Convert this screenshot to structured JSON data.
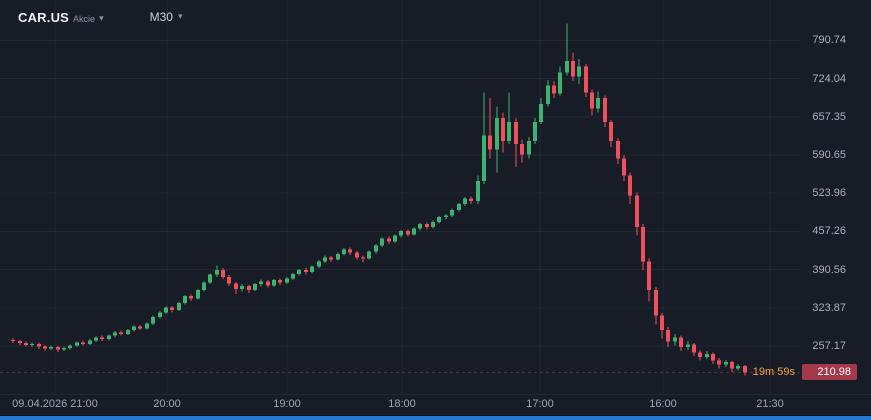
{
  "header": {
    "symbol": "CAR.US",
    "instrument_type": "Akcie",
    "timeframe": "M30"
  },
  "current_price_badge": "210.98",
  "candle_countdown": "19m 59s",
  "colors": {
    "background": "#171c27",
    "up": "#3fb26f",
    "down": "#f0505c",
    "grid": "rgba(255,255,255,0.05)",
    "axis_text": "#a9b0bb",
    "countdown_orange": "#f2a33c",
    "badge_red": "#a4394a",
    "scrollbar_blue": "#2579d2"
  },
  "chart_data": {
    "type": "candlestick",
    "title": "CAR.US M30 candlestick chart",
    "symbol": "CAR.US",
    "timeframe": "M30",
    "legend_position": "none",
    "grid": "faint",
    "price_axis_ticks": [
      790.74,
      724.04,
      657.35,
      590.65,
      523.96,
      457.26,
      390.56,
      323.87,
      257.17
    ],
    "time_axis_labels": [
      "09.04.2026 21:00",
      "20:00",
      "19:00",
      "18:00",
      "17:00",
      "16:00",
      "21:30"
    ],
    "time_label_x": [
      55,
      167,
      287,
      402,
      540,
      663,
      770
    ],
    "current_price": "210.98",
    "candle_countdown": "19m 59s",
    "price_range": {
      "min": 175,
      "max": 830
    },
    "candles": [
      [
        268,
        271,
        262,
        266
      ],
      [
        266,
        268,
        259,
        262
      ],
      [
        262,
        265,
        256,
        259
      ],
      [
        259,
        263,
        255,
        261
      ],
      [
        261,
        263,
        252,
        256
      ],
      [
        256,
        259,
        249,
        253
      ],
      [
        253,
        258,
        250,
        255
      ],
      [
        255,
        257,
        247,
        251
      ],
      [
        251,
        256,
        248,
        254
      ],
      [
        254,
        260,
        251,
        258
      ],
      [
        258,
        265,
        255,
        263
      ],
      [
        263,
        266,
        258,
        261
      ],
      [
        261,
        269,
        259,
        267
      ],
      [
        267,
        274,
        264,
        272
      ],
      [
        272,
        275,
        266,
        269
      ],
      [
        269,
        277,
        267,
        275
      ],
      [
        275,
        283,
        272,
        281
      ],
      [
        281,
        284,
        275,
        278
      ],
      [
        278,
        287,
        276,
        285
      ],
      [
        285,
        293,
        282,
        291
      ],
      [
        291,
        294,
        285,
        288
      ],
      [
        288,
        298,
        286,
        296
      ],
      [
        296,
        310,
        294,
        308
      ],
      [
        308,
        318,
        305,
        316
      ],
      [
        316,
        326,
        313,
        324
      ],
      [
        324,
        327,
        316,
        320
      ],
      [
        320,
        334,
        318,
        332
      ],
      [
        332,
        346,
        330,
        344
      ],
      [
        344,
        347,
        336,
        340
      ],
      [
        340,
        357,
        338,
        355
      ],
      [
        355,
        370,
        352,
        368
      ],
      [
        368,
        384,
        365,
        382
      ],
      [
        382,
        398,
        378,
        390
      ],
      [
        390,
        393,
        374,
        378
      ],
      [
        378,
        381,
        362,
        366
      ],
      [
        366,
        369,
        348,
        357
      ],
      [
        357,
        365,
        352,
        362
      ],
      [
        362,
        364,
        350,
        355
      ],
      [
        355,
        367,
        353,
        365
      ],
      [
        365,
        373,
        361,
        370
      ],
      [
        370,
        372,
        359,
        363
      ],
      [
        363,
        374,
        360,
        372
      ],
      [
        372,
        375,
        364,
        368
      ],
      [
        368,
        378,
        365,
        375
      ],
      [
        375,
        385,
        372,
        383
      ],
      [
        383,
        392,
        380,
        390
      ],
      [
        390,
        393,
        382,
        386
      ],
      [
        386,
        398,
        384,
        396
      ],
      [
        396,
        407,
        393,
        405
      ],
      [
        405,
        415,
        402,
        412
      ],
      [
        412,
        414,
        404,
        408
      ],
      [
        408,
        420,
        406,
        418
      ],
      [
        418,
        428,
        415,
        426
      ],
      [
        426,
        429,
        416,
        420
      ],
      [
        420,
        423,
        408,
        412
      ],
      [
        412,
        415,
        404,
        410
      ],
      [
        410,
        424,
        408,
        422
      ],
      [
        422,
        435,
        419,
        433
      ],
      [
        433,
        447,
        430,
        445
      ],
      [
        445,
        448,
        435,
        440
      ],
      [
        440,
        452,
        437,
        450
      ],
      [
        450,
        460,
        447,
        458
      ],
      [
        458,
        461,
        448,
        452
      ],
      [
        452,
        464,
        450,
        462
      ],
      [
        462,
        472,
        459,
        470
      ],
      [
        470,
        473,
        461,
        465
      ],
      [
        465,
        476,
        462,
        474
      ],
      [
        474,
        484,
        471,
        482
      ],
      [
        482,
        488,
        478,
        485
      ],
      [
        485,
        497,
        482,
        495
      ],
      [
        495,
        507,
        492,
        505
      ],
      [
        505,
        517,
        502,
        515
      ],
      [
        515,
        518,
        505,
        510
      ],
      [
        510,
        555,
        505,
        545
      ],
      [
        545,
        700,
        540,
        625
      ],
      [
        625,
        690,
        585,
        600
      ],
      [
        600,
        675,
        560,
        655
      ],
      [
        655,
        665,
        595,
        615
      ],
      [
        615,
        700,
        610,
        648
      ],
      [
        648,
        655,
        570,
        610
      ],
      [
        610,
        618,
        578,
        592
      ],
      [
        592,
        622,
        585,
        615
      ],
      [
        615,
        655,
        610,
        648
      ],
      [
        648,
        690,
        645,
        680
      ],
      [
        680,
        722,
        675,
        712
      ],
      [
        712,
        720,
        690,
        698
      ],
      [
        698,
        745,
        695,
        735
      ],
      [
        735,
        820,
        730,
        755
      ],
      [
        755,
        770,
        720,
        728
      ],
      [
        728,
        758,
        715,
        745
      ],
      [
        745,
        750,
        692,
        700
      ],
      [
        700,
        705,
        660,
        672
      ],
      [
        672,
        702,
        665,
        690
      ],
      [
        690,
        695,
        640,
        648
      ],
      [
        648,
        652,
        605,
        615
      ],
      [
        615,
        620,
        575,
        585
      ],
      [
        585,
        590,
        545,
        555
      ],
      [
        555,
        560,
        505,
        520
      ],
      [
        520,
        525,
        450,
        465
      ],
      [
        465,
        470,
        390,
        405
      ],
      [
        405,
        410,
        335,
        355
      ],
      [
        355,
        360,
        295,
        310
      ],
      [
        310,
        315,
        270,
        285
      ],
      [
        285,
        290,
        255,
        265
      ],
      [
        265,
        278,
        258,
        272
      ],
      [
        272,
        275,
        248,
        255
      ],
      [
        255,
        266,
        250,
        260
      ],
      [
        260,
        262,
        240,
        246
      ],
      [
        246,
        250,
        232,
        238
      ],
      [
        238,
        248,
        234,
        243
      ],
      [
        243,
        246,
        226,
        232
      ],
      [
        232,
        236,
        218,
        225
      ],
      [
        225,
        233,
        220,
        229
      ],
      [
        229,
        231,
        212,
        218
      ],
      [
        218,
        226,
        214,
        222
      ],
      [
        222,
        224,
        206,
        210.98
      ]
    ]
  }
}
